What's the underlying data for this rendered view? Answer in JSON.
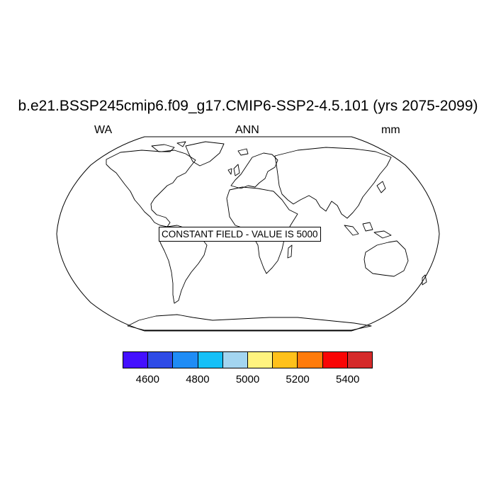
{
  "title": "b.e21.BSSP245cmip6.f09_g17.CMIP6-SSP2-4.5.101 (yrs 2075-2099)",
  "left_string": "WA",
  "center_string": "ANN",
  "right_string": "mm",
  "constant_field_label": "CONSTANT FIELD - VALUE IS 5000",
  "colorbar": {
    "colors": [
      "#4410FF",
      "#2E4BE6",
      "#1F8CF5",
      "#16C0F7",
      "#A3D5F0",
      "#FFF37F",
      "#FFC11A",
      "#FF7B0A",
      "#F90505",
      "#D52A2A"
    ],
    "labels": [
      "4600",
      "4800",
      "5000",
      "5200",
      "5400"
    ]
  },
  "projection": "Robinson",
  "colors": {
    "coastline": "#000000",
    "background": "#ffffff"
  }
}
